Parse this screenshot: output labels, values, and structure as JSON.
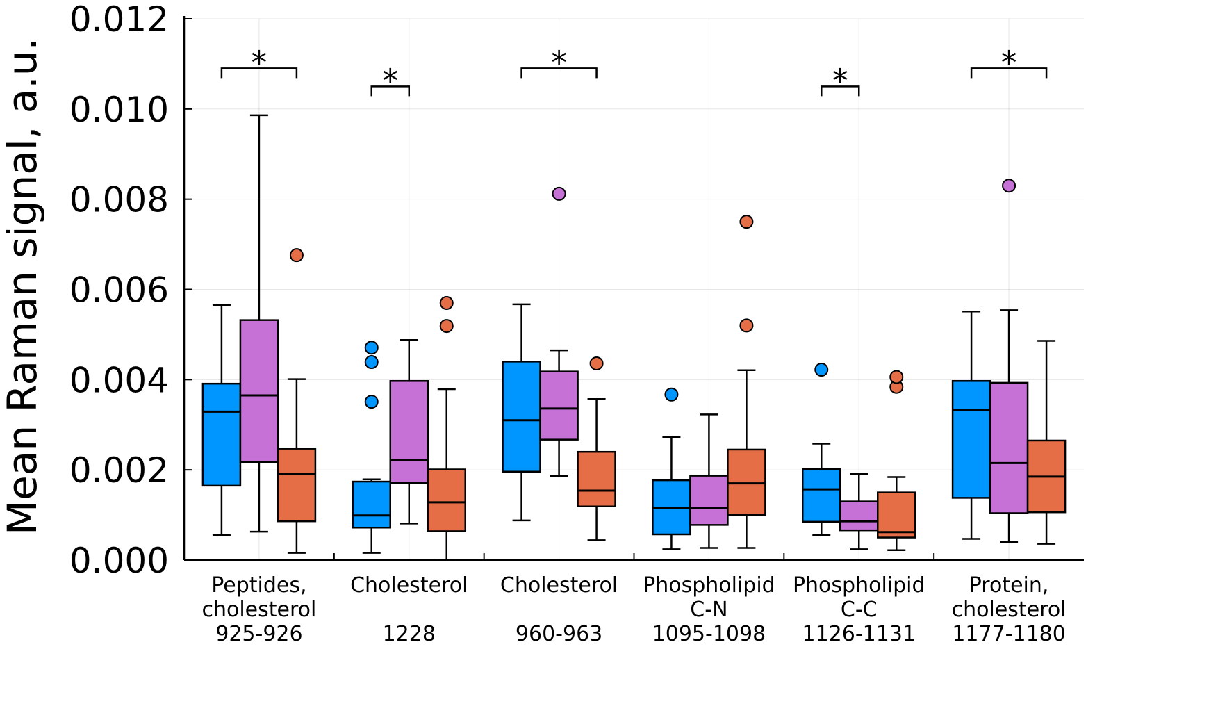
{
  "chart_data": {
    "type": "box",
    "ylabel": "Mean Raman signal, a.u.",
    "ylim": [
      0,
      0.012
    ],
    "yticks": [
      "0.000",
      "0.002",
      "0.004",
      "0.006",
      "0.008",
      "0.010",
      "0.012"
    ],
    "grid": true,
    "colors": [
      "#0096ff",
      "#c571d6",
      "#e66e47"
    ],
    "significance_marker": "*",
    "categories": [
      {
        "label": [
          "Peptides,",
          "cholesterol",
          "925-926"
        ],
        "boxes": [
          {
            "min": 0.00055,
            "q1": 0.00165,
            "median": 0.00329,
            "q3": 0.00391,
            "max": 0.00565,
            "outliers": []
          },
          {
            "min": 0.00063,
            "q1": 0.00217,
            "median": 0.00365,
            "q3": 0.00532,
            "max": 0.00986,
            "outliers": []
          },
          {
            "min": 0.00016,
            "q1": 0.00086,
            "median": 0.00191,
            "q3": 0.00247,
            "max": 0.00401,
            "outliers": [
              0.00676
            ]
          }
        ],
        "bracket": {
          "from": 0,
          "to": 2,
          "y": 0.0109
        }
      },
      {
        "label": [
          "Cholesterol",
          "",
          "1228"
        ],
        "boxes": [
          {
            "min": 0.00016,
            "q1": 0.00072,
            "median": 0.00099,
            "q3": 0.00174,
            "max": 0.00179,
            "outliers": [
              0.00351,
              0.00439,
              0.00471
            ]
          },
          {
            "min": 0.00081,
            "q1": 0.00171,
            "median": 0.00221,
            "q3": 0.00397,
            "max": 0.00488,
            "outliers": []
          },
          {
            "min": 0.0,
            "q1": 0.00064,
            "median": 0.00128,
            "q3": 0.00201,
            "max": 0.00379,
            "outliers": [
              0.00519,
              0.0057
            ]
          }
        ],
        "bracket": {
          "from": 0,
          "to": 1,
          "y": 0.0105
        }
      },
      {
        "label": [
          "Cholesterol",
          "",
          "960-963"
        ],
        "boxes": [
          {
            "min": 0.00088,
            "q1": 0.00196,
            "median": 0.0031,
            "q3": 0.0044,
            "max": 0.00567,
            "outliers": []
          },
          {
            "min": 0.00186,
            "q1": 0.00267,
            "median": 0.00336,
            "q3": 0.00418,
            "max": 0.00465,
            "outliers": [
              0.00812
            ]
          },
          {
            "min": 0.00044,
            "q1": 0.00119,
            "median": 0.00154,
            "q3": 0.0024,
            "max": 0.00357,
            "outliers": [
              0.00436
            ]
          }
        ],
        "bracket": {
          "from": 0,
          "to": 2,
          "y": 0.0109
        }
      },
      {
        "label": [
          "Phospholipid",
          "C-N",
          "1095-1098"
        ],
        "boxes": [
          {
            "min": 0.00024,
            "q1": 0.00057,
            "median": 0.00115,
            "q3": 0.00177,
            "max": 0.00273,
            "outliers": [
              0.00367
            ]
          },
          {
            "min": 0.00027,
            "q1": 0.00078,
            "median": 0.00115,
            "q3": 0.00187,
            "max": 0.00323,
            "outliers": []
          },
          {
            "min": 0.00027,
            "q1": 0.001,
            "median": 0.0017,
            "q3": 0.00245,
            "max": 0.00421,
            "outliers": [
              0.0052,
              0.0075
            ]
          }
        ],
        "bracket": null
      },
      {
        "label": [
          "Phospholipid",
          "C-C",
          "1126-1131"
        ],
        "boxes": [
          {
            "min": 0.00055,
            "q1": 0.00085,
            "median": 0.00157,
            "q3": 0.00202,
            "max": 0.00258,
            "outliers": [
              0.00422
            ]
          },
          {
            "min": 0.00024,
            "q1": 0.00066,
            "median": 0.00086,
            "q3": 0.0013,
            "max": 0.00191,
            "outliers": []
          },
          {
            "min": 0.00022,
            "q1": 0.0005,
            "median": 0.00062,
            "q3": 0.0015,
            "max": 0.00184,
            "outliers": [
              0.00384,
              0.00406
            ]
          }
        ],
        "bracket": {
          "from": 0,
          "to": 1,
          "y": 0.0105
        }
      },
      {
        "label": [
          "Protein,",
          "cholesterol",
          "1177-1180"
        ],
        "boxes": [
          {
            "min": 0.00047,
            "q1": 0.00138,
            "median": 0.00332,
            "q3": 0.00397,
            "max": 0.00551,
            "outliers": []
          },
          {
            "min": 0.0004,
            "q1": 0.00104,
            "median": 0.00215,
            "q3": 0.00393,
            "max": 0.00554,
            "outliers": [
              0.0083
            ]
          },
          {
            "min": 0.00036,
            "q1": 0.00106,
            "median": 0.00185,
            "q3": 0.00265,
            "max": 0.00486,
            "outliers": []
          }
        ],
        "bracket": {
          "from": 0,
          "to": 2,
          "y": 0.0109
        }
      }
    ]
  }
}
